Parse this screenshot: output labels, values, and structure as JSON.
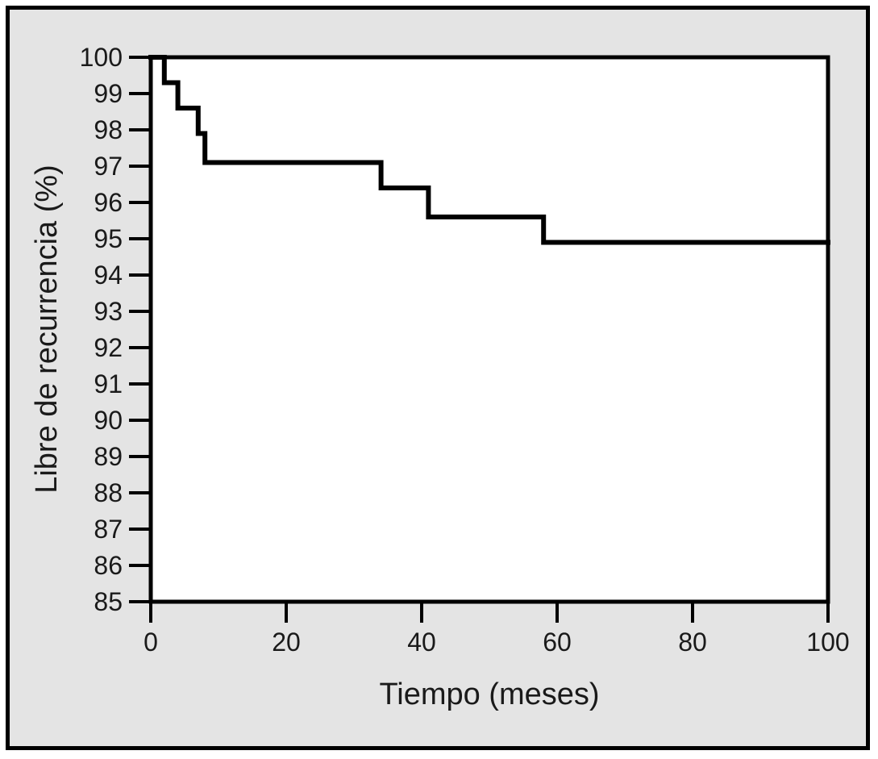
{
  "figure": {
    "background_color": "#e4e4e4",
    "border_color": "#000000",
    "plot_background_color": "#ffffff",
    "curve_color": "#000000"
  },
  "chart_data": {
    "type": "line",
    "subtype": "kaplan-meier-step",
    "title": "",
    "xlabel": "Tiempo (meses)",
    "ylabel": "Libre de recurrencia (%)",
    "xlim": [
      0,
      100
    ],
    "ylim": [
      85,
      100
    ],
    "x_ticks": [
      0,
      20,
      40,
      60,
      80,
      100
    ],
    "y_ticks": [
      85,
      86,
      87,
      88,
      89,
      90,
      91,
      92,
      93,
      94,
      95,
      96,
      97,
      98,
      99,
      100
    ],
    "grid": false,
    "legend": null,
    "series": [
      {
        "name": "Libre de recurrencia",
        "color": "#000000",
        "steps": [
          [
            0,
            100
          ],
          [
            2,
            99.3
          ],
          [
            4,
            98.6
          ],
          [
            7,
            97.9
          ],
          [
            8,
            97.1
          ],
          [
            34,
            96.4
          ],
          [
            41,
            95.6
          ],
          [
            58,
            94.9
          ],
          [
            100,
            94.9
          ]
        ]
      }
    ]
  }
}
